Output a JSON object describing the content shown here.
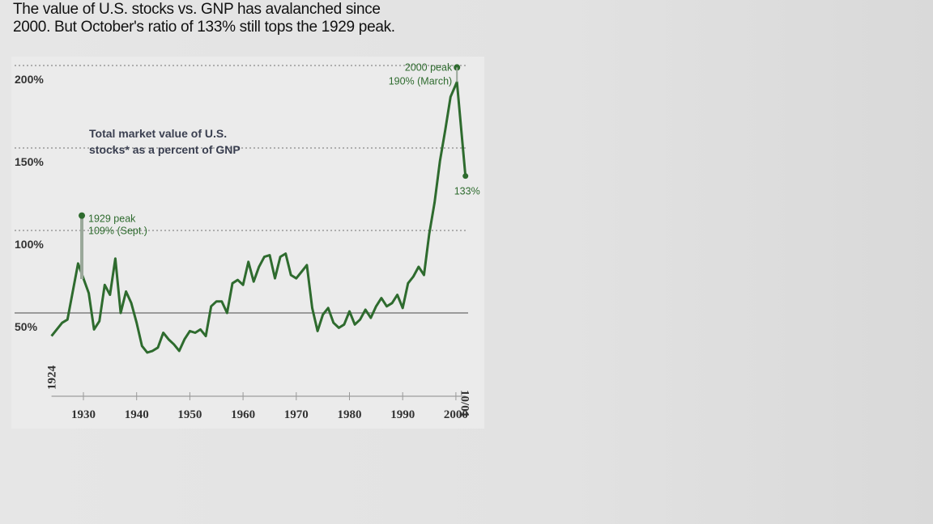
{
  "title": {
    "line1": "The value of U.S. stocks vs. GNP has avalanched since",
    "line2": "2000. But October's ratio of 133% still tops the 1929 peak."
  },
  "chart_data": {
    "type": "line",
    "title": "The value of U.S. stocks vs. GNP has avalanched since 2000. But October's ratio of 133% still tops the 1929 peak.",
    "subtitle_line1": "Total market value of U.S.",
    "subtitle_line2": "stocks* as a percent of GNP",
    "xlabel": "",
    "ylabel": "",
    "ylim": [
      0,
      200
    ],
    "xlim": [
      1924,
      2001.8
    ],
    "y_ticks": [
      {
        "value": 200,
        "label": "200%"
      },
      {
        "value": 150,
        "label": "150%"
      },
      {
        "value": 100,
        "label": "100%"
      },
      {
        "value": 50,
        "label": "50%"
      }
    ],
    "x_ticks": [
      {
        "value": 1930,
        "label": "1930"
      },
      {
        "value": 1940,
        "label": "1940"
      },
      {
        "value": 1950,
        "label": "1950"
      },
      {
        "value": 1960,
        "label": "1960"
      },
      {
        "value": 1970,
        "label": "1970"
      },
      {
        "value": 1980,
        "label": "1980"
      },
      {
        "value": 1990,
        "label": "1990"
      },
      {
        "value": 2000,
        "label": "2000"
      }
    ],
    "start_label": "1924",
    "end_label": "10/01",
    "color": "#2e6b2e",
    "series": [
      {
        "name": "Total market value of U.S. stocks as a percent of GNP",
        "x": [
          1924,
          1926,
          1927,
          1929,
          1930,
          1931,
          1932,
          1933,
          1934,
          1935,
          1936,
          1937,
          1938,
          1939,
          1940,
          1941,
          1942,
          1943,
          1944,
          1945,
          1946,
          1947,
          1948,
          1949,
          1950,
          1951,
          1952,
          1953,
          1954,
          1955,
          1956,
          1957,
          1958,
          1959,
          1960,
          1961,
          1962,
          1963,
          1964,
          1965,
          1966,
          1967,
          1968,
          1969,
          1970,
          1971,
          1972,
          1973,
          1974,
          1975,
          1976,
          1977,
          1978,
          1979,
          1980,
          1981,
          1982,
          1983,
          1984,
          1985,
          1986,
          1987,
          1988,
          1989,
          1990,
          1991,
          1992,
          1993,
          1994,
          1995,
          1996,
          1997,
          1998,
          1999,
          2000.2,
          2001.8
        ],
        "values": [
          36,
          44,
          46,
          80,
          71,
          62,
          40,
          45,
          67,
          61,
          83,
          50,
          63,
          56,
          44,
          30,
          26,
          27,
          29,
          38,
          34,
          31,
          27,
          34,
          39,
          38,
          40,
          36,
          54,
          57,
          57,
          50,
          68,
          70,
          67,
          81,
          69,
          78,
          84,
          85,
          71,
          84,
          86,
          73,
          71,
          75,
          79,
          53,
          39,
          49,
          53,
          44,
          41,
          43,
          51,
          43,
          46,
          52,
          47,
          54,
          59,
          54,
          56,
          61,
          53,
          68,
          72,
          78,
          73,
          98,
          117,
          142,
          161,
          181,
          190,
          133
        ]
      }
    ],
    "annotations": [
      {
        "x": 1929.7,
        "y": 109,
        "line1": "1929 peak",
        "line2": "109% (Sept.)"
      },
      {
        "x": 2000.2,
        "y": 190,
        "line1": "2000 peak",
        "line2": "190% (March)"
      },
      {
        "x": 2001.8,
        "y": 133,
        "line1": "133%"
      }
    ],
    "grid": true
  }
}
